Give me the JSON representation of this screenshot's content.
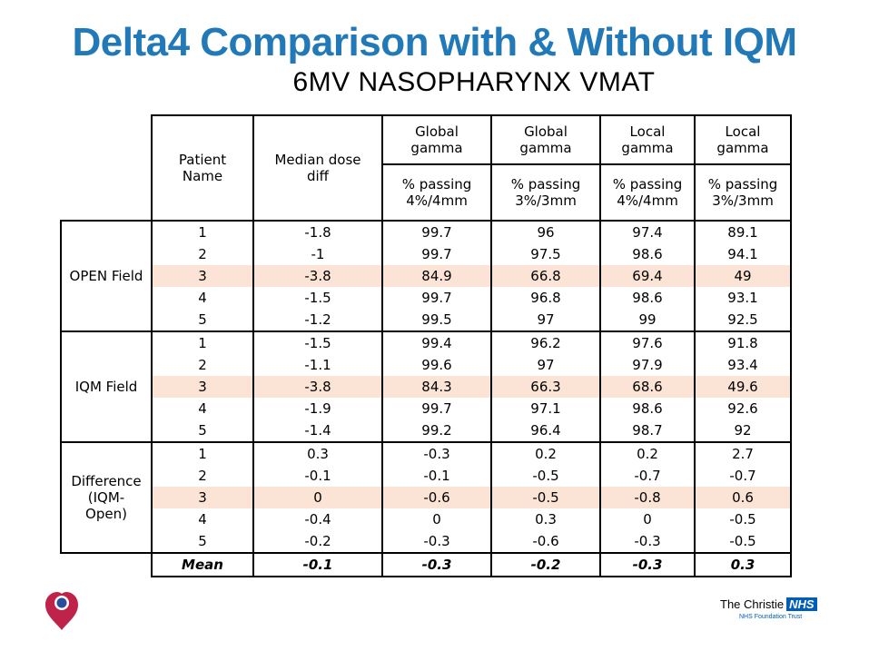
{
  "title": "Delta4 Comparison with & Without IQM",
  "subtitle": "6MV NASOPHARYNX VMAT",
  "headers": {
    "patient": [
      "Patient",
      "Name"
    ],
    "median": [
      "Median dose",
      "diff"
    ],
    "g1_top": [
      "Global",
      "gamma"
    ],
    "g2_top": [
      "Global",
      "gamma"
    ],
    "l1_top": [
      "Local",
      "gamma"
    ],
    "l2_top": [
      "Local",
      "gamma"
    ],
    "g1_sub": [
      "% passing",
      "4%/4mm"
    ],
    "g2_sub": [
      "% passing",
      "3%/3mm"
    ],
    "l1_sub": [
      "% passing",
      "4%/4mm"
    ],
    "l2_sub": [
      "% passing",
      "3%/3mm"
    ]
  },
  "groups": [
    {
      "label": [
        "OPEN Field"
      ],
      "rows": [
        [
          "1",
          "-1.8",
          "99.7",
          "96",
          "97.4",
          "89.1"
        ],
        [
          "2",
          "-1",
          "99.7",
          "97.5",
          "98.6",
          "94.1"
        ],
        [
          "3",
          "-3.8",
          "84.9",
          "66.8",
          "69.4",
          "49"
        ],
        [
          "4",
          "-1.5",
          "99.7",
          "96.8",
          "98.6",
          "93.1"
        ],
        [
          "5",
          "-1.2",
          "99.5",
          "97",
          "99",
          "92.5"
        ]
      ]
    },
    {
      "label": [
        "IQM Field"
      ],
      "rows": [
        [
          "1",
          "-1.5",
          "99.4",
          "96.2",
          "97.6",
          "91.8"
        ],
        [
          "2",
          "-1.1",
          "99.6",
          "97",
          "97.9",
          "93.4"
        ],
        [
          "3",
          "-3.8",
          "84.3",
          "66.3",
          "68.6",
          "49.6"
        ],
        [
          "4",
          "-1.9",
          "99.7",
          "97.1",
          "98.6",
          "92.6"
        ],
        [
          "5",
          "-1.4",
          "99.2",
          "96.4",
          "98.7",
          "92"
        ]
      ]
    },
    {
      "label": [
        "Difference",
        "(IQM-",
        "Open)"
      ],
      "rows": [
        [
          "1",
          "0.3",
          "-0.3",
          "0.2",
          "0.2",
          "2.7"
        ],
        [
          "2",
          "-0.1",
          "-0.1",
          "-0.5",
          "-0.7",
          "-0.7"
        ],
        [
          "3",
          "0",
          "-0.6",
          "-0.5",
          "-0.8",
          "0.6"
        ],
        [
          "4",
          "-0.4",
          "0",
          "0.3",
          "0",
          "-0.5"
        ],
        [
          "5",
          "-0.2",
          "-0.3",
          "-0.6",
          "-0.3",
          "-0.5"
        ]
      ]
    }
  ],
  "highlight_row": "3",
  "highlight_color": "#fbe4d5",
  "mean": [
    "Mean",
    "-0.1",
    "-0.3",
    "-0.2",
    "-0.3",
    "0.3"
  ],
  "footer": {
    "org": "The Christie",
    "nhs": "NHS",
    "trust": "NHS Foundation Trust",
    "logo_icon": "heart-logo-icon"
  },
  "colors": {
    "title": "#2179b8",
    "nhs_blue": "#005eb8",
    "logo_red": "#c0234a"
  }
}
